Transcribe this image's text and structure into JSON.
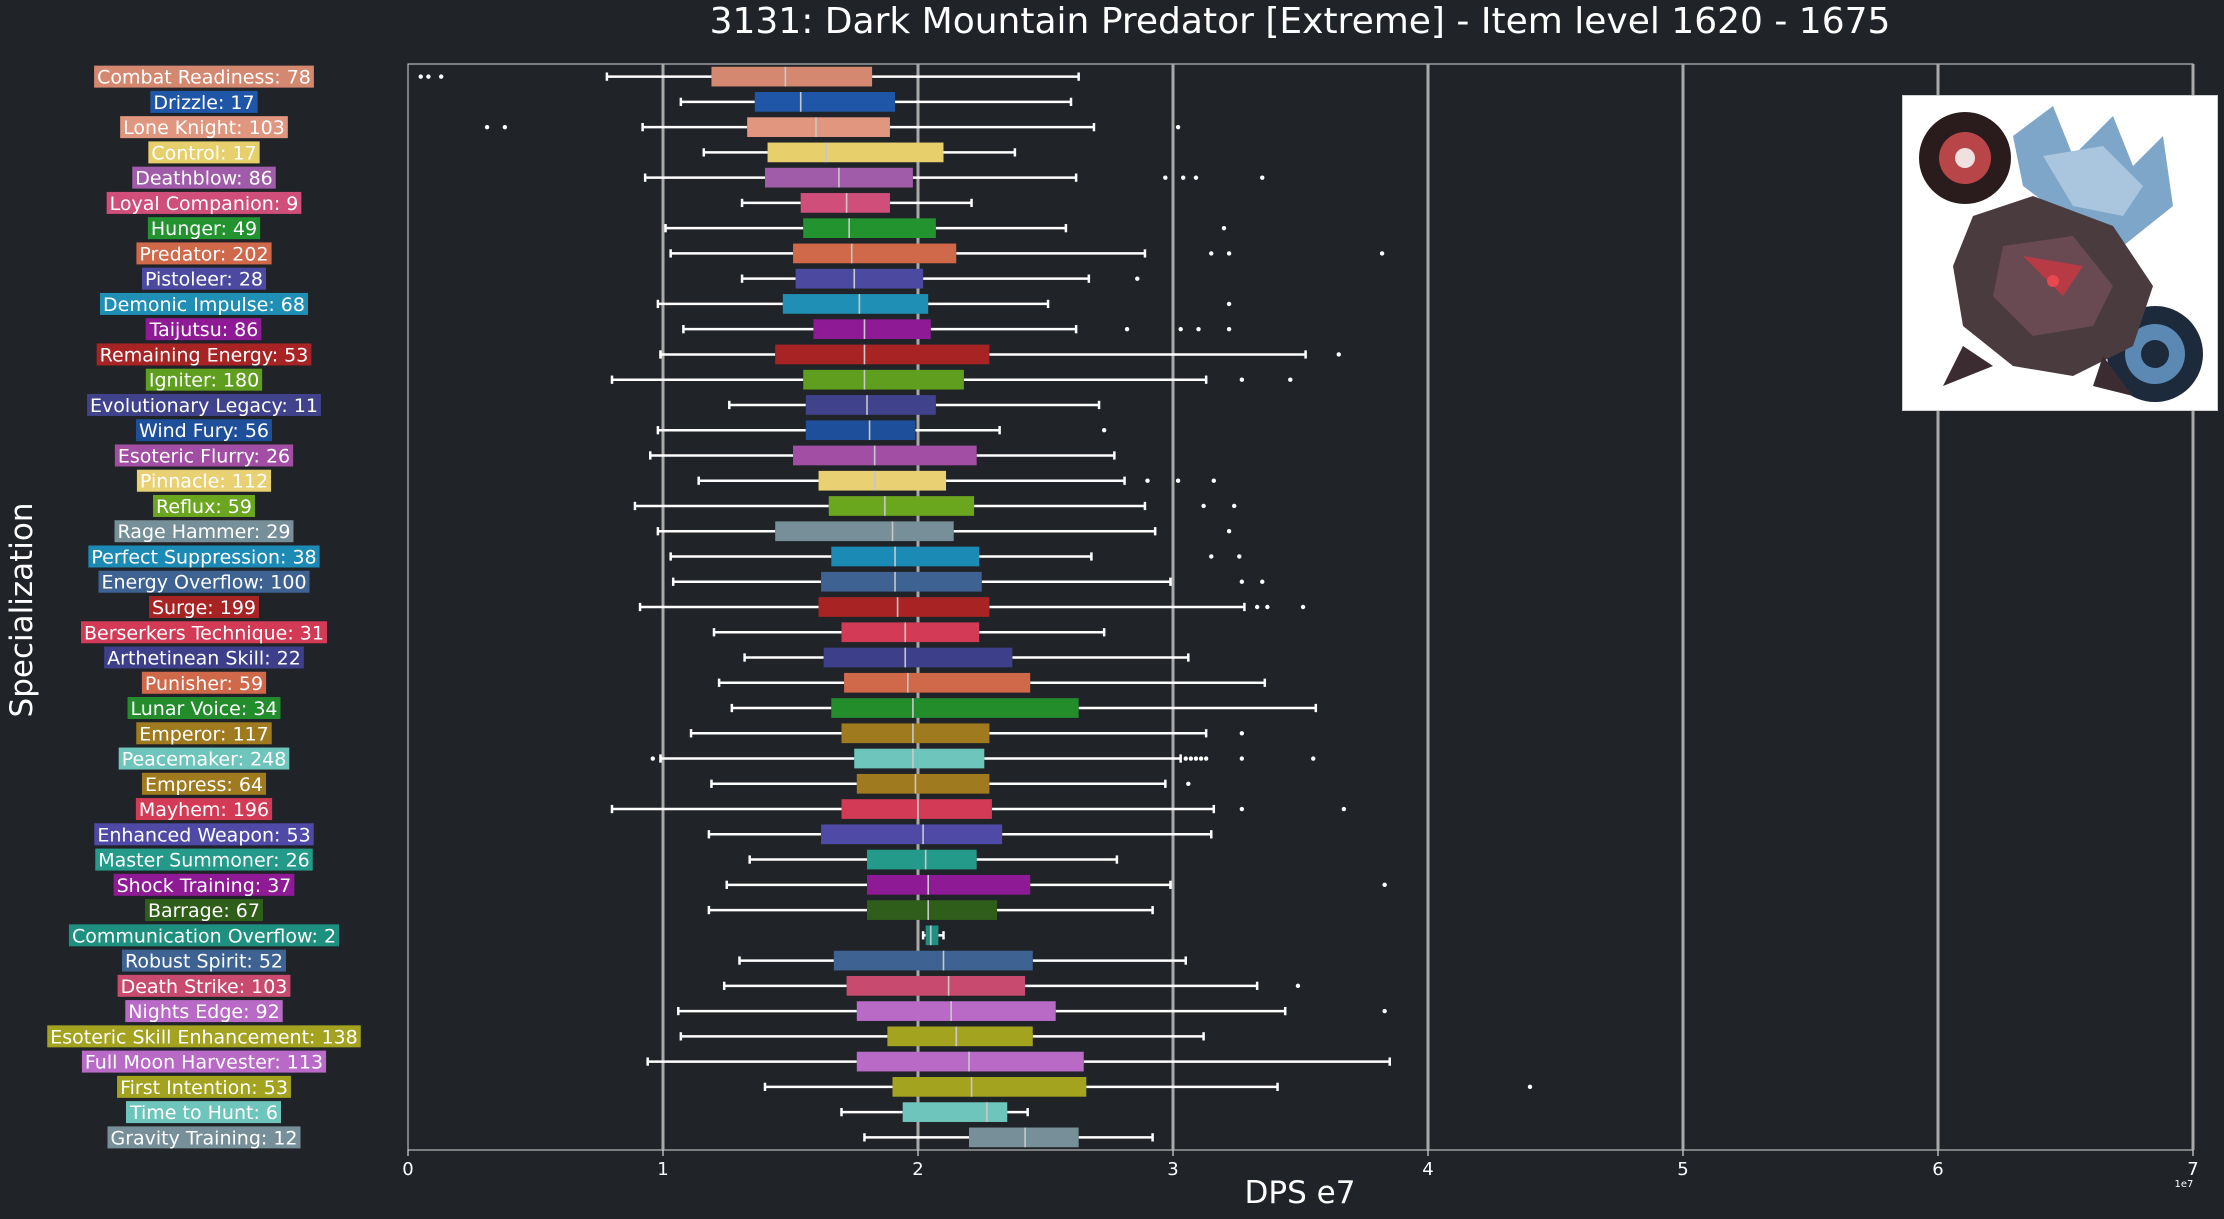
{
  "chart_data": {
    "type": "boxplot",
    "title": "3131: Dark Mountain Predator [Extreme] - Item level 1620 - 1675",
    "xlabel": "DPS e7",
    "ylabel": "Specialization",
    "x_offset_label": "1e7",
    "xlim": [
      0,
      7
    ],
    "xticks": [
      "0",
      "1",
      "2",
      "3",
      "4",
      "5",
      "6",
      "7"
    ],
    "grid": "vertical",
    "median_line_color": "#c8c8c8",
    "series": [
      {
        "label": "Combat Readiness: 78",
        "color": "#d58870",
        "whisker_low": 0.78,
        "q1": 1.19,
        "median": 1.48,
        "q3": 1.82,
        "whisker_high": 2.63,
        "outliers": [
          0.05,
          0.08,
          0.13
        ]
      },
      {
        "label": "Drizzle: 17",
        "color": "#1f56a8",
        "whisker_low": 1.07,
        "q1": 1.36,
        "median": 1.54,
        "q3": 1.91,
        "whisker_high": 2.6,
        "outliers": []
      },
      {
        "label": "Lone Knight: 103",
        "color": "#e0967f",
        "whisker_low": 0.92,
        "q1": 1.33,
        "median": 1.6,
        "q3": 1.89,
        "whisker_high": 2.69,
        "outliers": [
          0.31,
          0.38,
          3.02
        ]
      },
      {
        "label": "Control: 17",
        "color": "#e7cf6b",
        "whisker_low": 1.16,
        "q1": 1.41,
        "median": 1.64,
        "q3": 2.1,
        "whisker_high": 2.38,
        "outliers": []
      },
      {
        "label": "Deathblow: 86",
        "color": "#a05ba9",
        "whisker_low": 0.93,
        "q1": 1.4,
        "median": 1.69,
        "q3": 1.98,
        "whisker_high": 2.62,
        "outliers": [
          2.97,
          3.04,
          3.09,
          3.35
        ]
      },
      {
        "label": "Loyal Companion: 9",
        "color": "#d04e7a",
        "whisker_low": 1.31,
        "q1": 1.54,
        "median": 1.72,
        "q3": 1.89,
        "whisker_high": 2.21,
        "outliers": []
      },
      {
        "label": "Hunger: 49",
        "color": "#23932f",
        "whisker_low": 1.01,
        "q1": 1.55,
        "median": 1.73,
        "q3": 2.07,
        "whisker_high": 2.58,
        "outliers": [
          3.2
        ]
      },
      {
        "label": "Predator: 202",
        "color": "#d0684a",
        "whisker_low": 1.03,
        "q1": 1.51,
        "median": 1.74,
        "q3": 2.15,
        "whisker_high": 2.89,
        "outliers": [
          3.15,
          3.22,
          3.82
        ]
      },
      {
        "label": "Pistoleer: 28",
        "color": "#4b4aa0",
        "whisker_low": 1.31,
        "q1": 1.52,
        "median": 1.75,
        "q3": 2.02,
        "whisker_high": 2.67,
        "outliers": [
          2.86
        ]
      },
      {
        "label": "Demonic Impulse: 68",
        "color": "#1f8fb5",
        "whisker_low": 0.98,
        "q1": 1.47,
        "median": 1.77,
        "q3": 2.04,
        "whisker_high": 2.51,
        "outliers": [
          3.22
        ]
      },
      {
        "label": "Taijutsu: 86",
        "color": "#8e1a95",
        "whisker_low": 1.08,
        "q1": 1.59,
        "median": 1.79,
        "q3": 2.05,
        "whisker_high": 2.62,
        "outliers": [
          2.82,
          3.03,
          3.1,
          3.22
        ]
      },
      {
        "label": "Remaining Energy: 53",
        "color": "#a82424",
        "whisker_low": 0.99,
        "q1": 1.44,
        "median": 1.79,
        "q3": 2.28,
        "whisker_high": 3.52,
        "outliers": [
          3.65
        ]
      },
      {
        "label": "Igniter: 180",
        "color": "#5f9e1e",
        "whisker_low": 0.8,
        "q1": 1.55,
        "median": 1.79,
        "q3": 2.18,
        "whisker_high": 3.13,
        "outliers": [
          3.27,
          3.46
        ]
      },
      {
        "label": "Evolutionary Legacy: 11",
        "color": "#40438c",
        "whisker_low": 1.26,
        "q1": 1.56,
        "median": 1.8,
        "q3": 2.07,
        "whisker_high": 2.71,
        "outliers": []
      },
      {
        "label": "Wind Fury: 56",
        "color": "#1e4f9a",
        "whisker_low": 0.98,
        "q1": 1.56,
        "median": 1.81,
        "q3": 1.99,
        "whisker_high": 2.32,
        "outliers": [
          2.73
        ]
      },
      {
        "label": "Esoteric Flurry: 26",
        "color": "#a34ea5",
        "whisker_low": 0.95,
        "q1": 1.51,
        "median": 1.83,
        "q3": 2.23,
        "whisker_high": 2.77,
        "outliers": []
      },
      {
        "label": "Pinnacle: 112",
        "color": "#e9d072",
        "whisker_low": 1.14,
        "q1": 1.61,
        "median": 1.83,
        "q3": 2.11,
        "whisker_high": 2.81,
        "outliers": [
          2.9,
          3.02,
          3.16
        ]
      },
      {
        "label": "Reflux: 59",
        "color": "#6ba61f",
        "whisker_low": 0.89,
        "q1": 1.65,
        "median": 1.87,
        "q3": 2.22,
        "whisker_high": 2.89,
        "outliers": [
          3.12,
          3.24
        ]
      },
      {
        "label": "Rage Hammer: 29",
        "color": "#768f98",
        "whisker_low": 0.98,
        "q1": 1.44,
        "median": 1.9,
        "q3": 2.14,
        "whisker_high": 2.93,
        "outliers": [
          3.22
        ]
      },
      {
        "label": "Perfect Suppression: 38",
        "color": "#1b8ab5",
        "whisker_low": 1.03,
        "q1": 1.66,
        "median": 1.91,
        "q3": 2.24,
        "whisker_high": 2.68,
        "outliers": [
          3.15,
          3.26
        ]
      },
      {
        "label": "Energy Overflow: 100",
        "color": "#3e6393",
        "whisker_low": 1.04,
        "q1": 1.62,
        "median": 1.91,
        "q3": 2.25,
        "whisker_high": 2.99,
        "outliers": [
          3.27,
          3.35
        ]
      },
      {
        "label": "Surge: 199",
        "color": "#a82424",
        "whisker_low": 0.91,
        "q1": 1.61,
        "median": 1.92,
        "q3": 2.28,
        "whisker_high": 3.28,
        "outliers": [
          3.33,
          3.37,
          3.51
        ]
      },
      {
        "label": "Berserkers Technique: 31",
        "color": "#d23a55",
        "whisker_low": 1.2,
        "q1": 1.7,
        "median": 1.95,
        "q3": 2.24,
        "whisker_high": 2.73,
        "outliers": []
      },
      {
        "label": "Arthetinean Skill: 22",
        "color": "#3d3f8a",
        "whisker_low": 1.32,
        "q1": 1.63,
        "median": 1.95,
        "q3": 2.37,
        "whisker_high": 3.06,
        "outliers": []
      },
      {
        "label": "Punisher: 59",
        "color": "#d0684a",
        "whisker_low": 1.22,
        "q1": 1.71,
        "median": 1.96,
        "q3": 2.44,
        "whisker_high": 3.36,
        "outliers": []
      },
      {
        "label": "Lunar Voice: 34",
        "color": "#238d2c",
        "whisker_low": 1.27,
        "q1": 1.66,
        "median": 1.98,
        "q3": 2.63,
        "whisker_high": 3.56,
        "outliers": []
      },
      {
        "label": "Emperor: 117",
        "color": "#a07a1e",
        "whisker_low": 1.11,
        "q1": 1.7,
        "median": 1.98,
        "q3": 2.28,
        "whisker_high": 3.13,
        "outliers": [
          3.27
        ]
      },
      {
        "label": "Peacemaker: 248",
        "color": "#6ec5bb",
        "whisker_low": 0.99,
        "q1": 1.75,
        "median": 1.98,
        "q3": 2.26,
        "whisker_high": 3.03,
        "outliers": [
          0.96,
          3.05,
          3.07,
          3.09,
          3.11,
          3.13,
          3.27,
          3.55
        ]
      },
      {
        "label": "Empress: 64",
        "color": "#a07a1e",
        "whisker_low": 1.19,
        "q1": 1.76,
        "median": 1.99,
        "q3": 2.28,
        "whisker_high": 2.97,
        "outliers": [
          3.06
        ]
      },
      {
        "label": "Mayhem: 196",
        "color": "#d23a55",
        "whisker_low": 0.8,
        "q1": 1.7,
        "median": 2.0,
        "q3": 2.29,
        "whisker_high": 3.16,
        "outliers": [
          3.27,
          3.67
        ]
      },
      {
        "label": "Enhanced Weapon: 53",
        "color": "#4f4aa6",
        "whisker_low": 1.18,
        "q1": 1.62,
        "median": 2.02,
        "q3": 2.33,
        "whisker_high": 3.15,
        "outliers": []
      },
      {
        "label": "Master Summoner: 26",
        "color": "#239a8a",
        "whisker_low": 1.34,
        "q1": 1.8,
        "median": 2.03,
        "q3": 2.23,
        "whisker_high": 2.78,
        "outliers": []
      },
      {
        "label": "Shock Training: 37",
        "color": "#8e1a95",
        "whisker_low": 1.25,
        "q1": 1.8,
        "median": 2.04,
        "q3": 2.44,
        "whisker_high": 2.99,
        "outliers": [
          3.83
        ]
      },
      {
        "label": "Barrage: 67",
        "color": "#2f5e1a",
        "whisker_low": 1.18,
        "q1": 1.8,
        "median": 2.04,
        "q3": 2.31,
        "whisker_high": 2.92,
        "outliers": []
      },
      {
        "label": "Communication Overflow: 2",
        "color": "#1e9080",
        "whisker_low": 2.02,
        "q1": 2.03,
        "median": 2.05,
        "q3": 2.08,
        "whisker_high": 2.1,
        "outliers": []
      },
      {
        "label": "Robust Spirit: 52",
        "color": "#3e6393",
        "whisker_low": 1.3,
        "q1": 1.67,
        "median": 2.1,
        "q3": 2.45,
        "whisker_high": 3.05,
        "outliers": []
      },
      {
        "label": "Death Strike: 103",
        "color": "#c84a6e",
        "whisker_low": 1.24,
        "q1": 1.72,
        "median": 2.12,
        "q3": 2.42,
        "whisker_high": 3.33,
        "outliers": [
          3.49
        ]
      },
      {
        "label": "Nights Edge: 92",
        "color": "#b86ac6",
        "whisker_low": 1.06,
        "q1": 1.76,
        "median": 2.13,
        "q3": 2.54,
        "whisker_high": 3.44,
        "outliers": [
          3.83
        ]
      },
      {
        "label": "Esoteric Skill Enhancement: 138",
        "color": "#a3a31f",
        "whisker_low": 1.07,
        "q1": 1.88,
        "median": 2.15,
        "q3": 2.45,
        "whisker_high": 3.12,
        "outliers": []
      },
      {
        "label": "Full Moon Harvester: 113",
        "color": "#b86ac6",
        "whisker_low": 0.94,
        "q1": 1.76,
        "median": 2.2,
        "q3": 2.65,
        "whisker_high": 3.85,
        "outliers": []
      },
      {
        "label": "First Intention: 53",
        "color": "#a3a31f",
        "whisker_low": 1.4,
        "q1": 1.9,
        "median": 2.21,
        "q3": 2.66,
        "whisker_high": 3.41,
        "outliers": [
          4.4
        ]
      },
      {
        "label": "Time to Hunt: 6",
        "color": "#6ec5bb",
        "whisker_low": 1.7,
        "q1": 1.94,
        "median": 2.27,
        "q3": 2.35,
        "whisker_high": 2.43,
        "outliers": []
      },
      {
        "label": "Gravity Training: 12",
        "color": "#768f98",
        "whisker_low": 1.79,
        "q1": 2.2,
        "median": 2.42,
        "q3": 2.63,
        "whisker_high": 2.92,
        "outliers": []
      }
    ]
  }
}
